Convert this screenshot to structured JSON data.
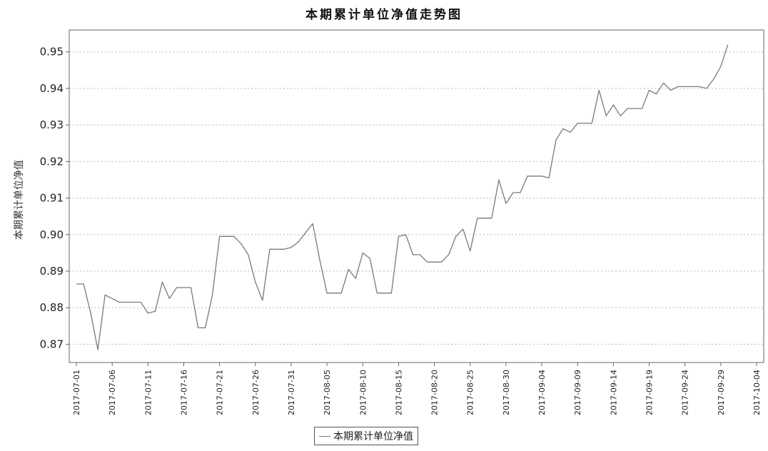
{
  "chart_data": {
    "type": "line",
    "title": "本期累计单位净值走势图",
    "ylabel": "本期累计单位净值",
    "xlabel": "",
    "ylim": [
      0.865,
      0.956
    ],
    "y_ticks": [
      0.87,
      0.88,
      0.89,
      0.9,
      0.91,
      0.92,
      0.93,
      0.94,
      0.95
    ],
    "y_tick_labels": [
      "0.87",
      "0.88",
      "0.89",
      "0.90",
      "0.91",
      "0.92",
      "0.93",
      "0.94",
      "0.95"
    ],
    "x_tick_labels": [
      "2017-07-01",
      "2017-07-06",
      "2017-07-11",
      "2017-07-16",
      "2017-07-21",
      "2017-07-26",
      "2017-07-31",
      "2017-08-05",
      "2017-08-10",
      "2017-08-15",
      "2017-08-20",
      "2017-08-25",
      "2017-08-30",
      "2017-09-04",
      "2017-09-09",
      "2017-09-14",
      "2017-09-19",
      "2017-09-24",
      "2017-09-29",
      "2017-10-04"
    ],
    "xlim": [
      "2017-06-30",
      "2017-10-05"
    ],
    "grid": true,
    "legend_position": "bottom-center",
    "colors": {
      "line": "#7a7a7a",
      "grid": "#bbbbbb",
      "axis": "#666666"
    },
    "series": [
      {
        "name": "本期累计单位净值",
        "x": [
          "2017-07-01",
          "2017-07-02",
          "2017-07-03",
          "2017-07-04",
          "2017-07-05",
          "2017-07-06",
          "2017-07-07",
          "2017-07-08",
          "2017-07-09",
          "2017-07-10",
          "2017-07-11",
          "2017-07-12",
          "2017-07-13",
          "2017-07-14",
          "2017-07-15",
          "2017-07-16",
          "2017-07-17",
          "2017-07-18",
          "2017-07-19",
          "2017-07-20",
          "2017-07-21",
          "2017-07-22",
          "2017-07-23",
          "2017-07-24",
          "2017-07-25",
          "2017-07-26",
          "2017-07-27",
          "2017-07-28",
          "2017-07-29",
          "2017-07-30",
          "2017-07-31",
          "2017-08-01",
          "2017-08-02",
          "2017-08-03",
          "2017-08-04",
          "2017-08-05",
          "2017-08-06",
          "2017-08-07",
          "2017-08-08",
          "2017-08-09",
          "2017-08-10",
          "2017-08-11",
          "2017-08-12",
          "2017-08-13",
          "2017-08-14",
          "2017-08-15",
          "2017-08-16",
          "2017-08-17",
          "2017-08-18",
          "2017-08-19",
          "2017-08-20",
          "2017-08-21",
          "2017-08-22",
          "2017-08-23",
          "2017-08-24",
          "2017-08-25",
          "2017-08-26",
          "2017-08-27",
          "2017-08-28",
          "2017-08-29",
          "2017-08-30",
          "2017-08-31",
          "2017-09-01",
          "2017-09-02",
          "2017-09-03",
          "2017-09-04",
          "2017-09-05",
          "2017-09-06",
          "2017-09-07",
          "2017-09-08",
          "2017-09-09",
          "2017-09-10",
          "2017-09-11",
          "2017-09-12",
          "2017-09-13",
          "2017-09-14",
          "2017-09-15",
          "2017-09-16",
          "2017-09-17",
          "2017-09-18",
          "2017-09-19",
          "2017-09-20",
          "2017-09-21",
          "2017-09-22",
          "2017-09-23",
          "2017-09-24",
          "2017-09-25",
          "2017-09-26",
          "2017-09-27",
          "2017-09-28",
          "2017-09-29",
          "2017-09-30"
        ],
        "values": [
          0.8865,
          0.8865,
          0.8785,
          0.8685,
          0.8835,
          0.8825,
          0.8815,
          0.8815,
          0.8815,
          0.8815,
          0.8785,
          0.879,
          0.887,
          0.8825,
          0.8855,
          0.8855,
          0.8855,
          0.8745,
          0.8745,
          0.8835,
          0.8995,
          0.8995,
          0.8995,
          0.8975,
          0.8945,
          0.887,
          0.882,
          0.896,
          0.896,
          0.896,
          0.8965,
          0.898,
          0.9005,
          0.903,
          0.893,
          0.884,
          0.884,
          0.884,
          0.8905,
          0.888,
          0.895,
          0.8935,
          0.884,
          0.884,
          0.884,
          0.8995,
          0.9,
          0.8945,
          0.8945,
          0.8925,
          0.8925,
          0.8925,
          0.8945,
          0.8995,
          0.9015,
          0.8955,
          0.9045,
          0.9045,
          0.9045,
          0.915,
          0.9085,
          0.9115,
          0.9115,
          0.916,
          0.916,
          0.916,
          0.9155,
          0.926,
          0.929,
          0.928,
          0.9305,
          0.9305,
          0.9305,
          0.9395,
          0.9325,
          0.9355,
          0.9325,
          0.9345,
          0.9345,
          0.9345,
          0.9395,
          0.9385,
          0.9415,
          0.9395,
          0.9405,
          0.9405,
          0.9405,
          0.9405,
          0.94,
          0.9425,
          0.946,
          0.952
        ]
      }
    ]
  }
}
